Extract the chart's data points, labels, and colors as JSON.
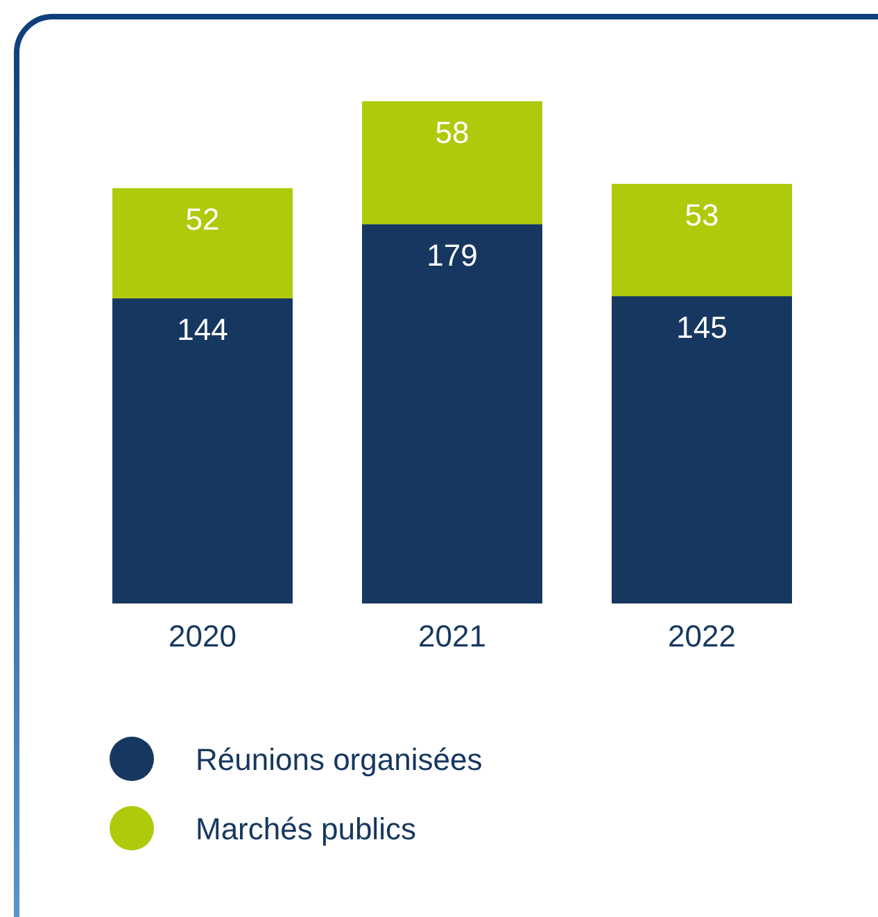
{
  "chart_data": {
    "type": "bar",
    "stacked": true,
    "categories": [
      "2020",
      "2021",
      "2022"
    ],
    "series": [
      {
        "name": "Réunions organisées",
        "color": "#16375f",
        "values": [
          144,
          179,
          145
        ]
      },
      {
        "name": "Marchés publics",
        "color": "#afca0b",
        "values": [
          52,
          58,
          53
        ]
      }
    ],
    "data_labels": true,
    "legend": "bottom"
  }
}
